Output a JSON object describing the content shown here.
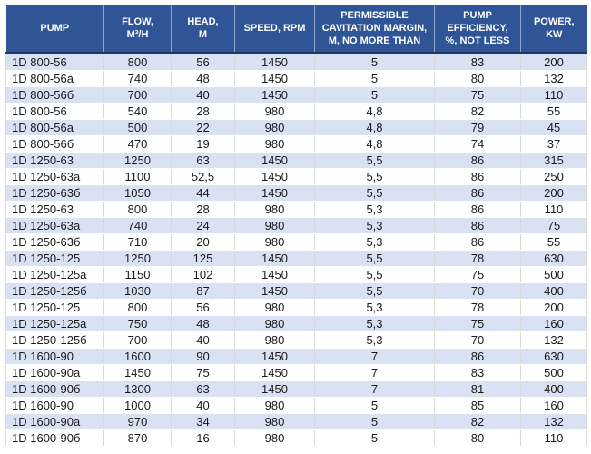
{
  "colors": {
    "header_bg": "#2F5597",
    "header_text": "#FFFFFF",
    "header_divider": "#1F3864",
    "row_alt_bg": "#D9E2F3",
    "row_bg": "#FFFFFF",
    "body_text": "#1A1A1A",
    "grid_line": "#D9D9D9"
  },
  "chart_data": {
    "type": "table",
    "columns": [
      {
        "key": "pump",
        "label": "PUMP"
      },
      {
        "key": "flow",
        "label": "FLOW,\nM³/H"
      },
      {
        "key": "head",
        "label": "HEAD,\nM"
      },
      {
        "key": "speed",
        "label": "SPEED, RPM"
      },
      {
        "key": "cavitation",
        "label": "PERMISSIBLE\nCAVITATION MARGIN,\nM, NO MORE THAN"
      },
      {
        "key": "efficiency",
        "label": "PUMP\nEFFICIENCY,\n%, NOT LESS"
      },
      {
        "key": "power",
        "label": "POWER,\nKW"
      }
    ],
    "rows": [
      [
        "1D 800-56",
        "800",
        "56",
        "1450",
        "5",
        "83",
        "200"
      ],
      [
        "1D 800-56a",
        "740",
        "48",
        "1450",
        "5",
        "80",
        "132"
      ],
      [
        "1D 800-56б",
        "700",
        "40",
        "1450",
        "5",
        "75",
        "110"
      ],
      [
        "1D 800-56",
        "540",
        "28",
        "980",
        "4,8",
        "82",
        "55"
      ],
      [
        "1D 800-56a",
        "500",
        "22",
        "980",
        "4,8",
        "79",
        "45"
      ],
      [
        "1D 800-56б",
        "470",
        "19",
        "980",
        "4,8",
        "74",
        "37"
      ],
      [
        "1D 1250-63",
        "1250",
        "63",
        "1450",
        "5,5",
        "86",
        "315"
      ],
      [
        "1D 1250-63a",
        "1100",
        "52,5",
        "1450",
        "5,5",
        "86",
        "250"
      ],
      [
        "1D 1250-63б",
        "1050",
        "44",
        "1450",
        "5,5",
        "86",
        "200"
      ],
      [
        "1D 1250-63",
        "800",
        "28",
        "980",
        "5,3",
        "86",
        "110"
      ],
      [
        "1D 1250-63a",
        "740",
        "24",
        "980",
        "5,3",
        "86",
        "75"
      ],
      [
        "1D 1250-63б",
        "710",
        "20",
        "980",
        "5,3",
        "86",
        "55"
      ],
      [
        "1D 1250-125",
        "1250",
        "125",
        "1450",
        "5,5",
        "78",
        "630"
      ],
      [
        "1D 1250-125a",
        "1150",
        "102",
        "1450",
        "5,5",
        "75",
        "500"
      ],
      [
        "1D 1250-125б",
        "1030",
        "87",
        "1450",
        "5,5",
        "70",
        "400"
      ],
      [
        "1D 1250-125",
        "800",
        "56",
        "980",
        "5,3",
        "78",
        "200"
      ],
      [
        "1D 1250-125a",
        "750",
        "48",
        "980",
        "5,3",
        "75",
        "160"
      ],
      [
        "1D 1250-125б",
        "700",
        "40",
        "980",
        "5,3",
        "70",
        "132"
      ],
      [
        "1D 1600-90",
        "1600",
        "90",
        "1450",
        "7",
        "86",
        "630"
      ],
      [
        "1D 1600-90a",
        "1450",
        "75",
        "1450",
        "7",
        "83",
        "500"
      ],
      [
        "1D 1600-90б",
        "1300",
        "63",
        "1450",
        "7",
        "81",
        "400"
      ],
      [
        "1D 1600-90",
        "1000",
        "40",
        "980",
        "5",
        "85",
        "160"
      ],
      [
        "1D 1600-90a",
        "970",
        "34",
        "980",
        "5",
        "82",
        "132"
      ],
      [
        "1D 1600-90б",
        "870",
        "16",
        "980",
        "5",
        "80",
        "110"
      ]
    ]
  }
}
